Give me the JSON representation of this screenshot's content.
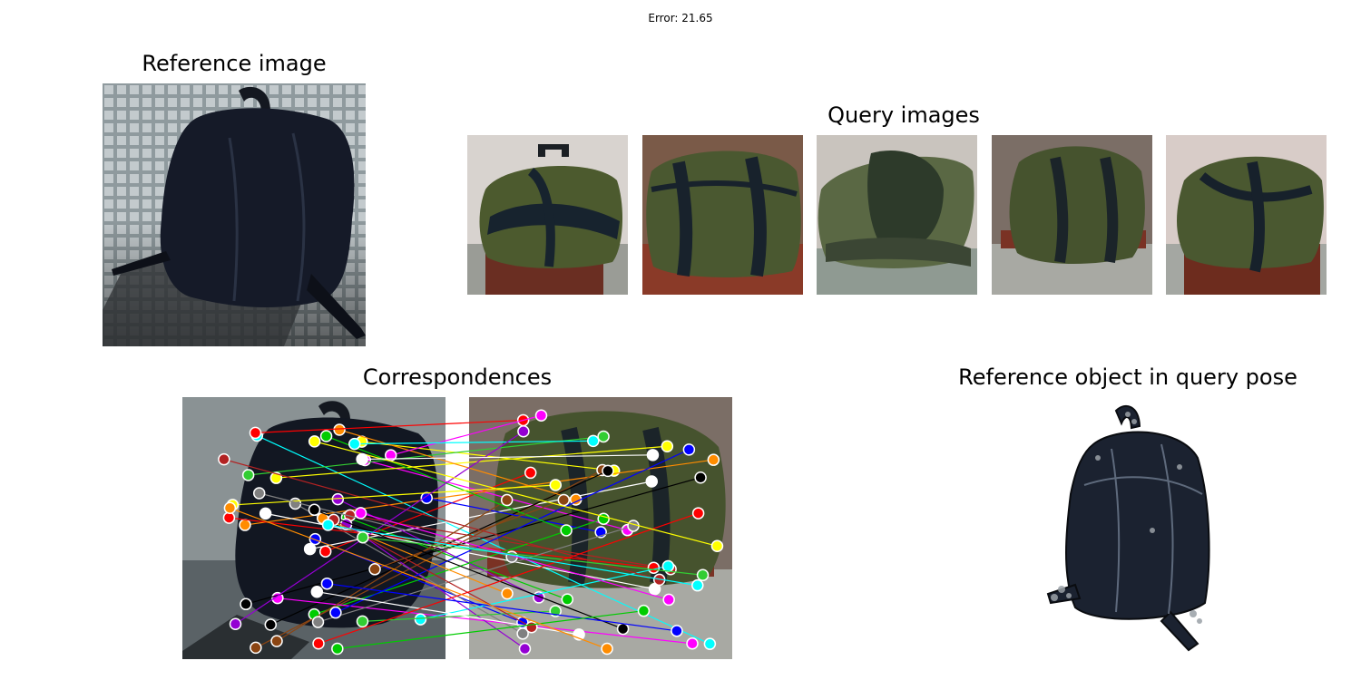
{
  "header": {
    "error_text": "Error: 21.65"
  },
  "reference_panel": {
    "title": "Reference image"
  },
  "query_panel": {
    "title": "Query images",
    "images": [
      {
        "label": "query-image-1",
        "selected": false
      },
      {
        "label": "query-image-2",
        "selected": false
      },
      {
        "label": "query-image-3",
        "selected": false
      },
      {
        "label": "query-image-4",
        "selected": true
      },
      {
        "label": "query-image-5",
        "selected": false
      }
    ],
    "selected_index": 3,
    "selection_color": "#008000"
  },
  "correspondences_panel": {
    "title": "Correspondences"
  },
  "pose_panel": {
    "title": "Reference object in query pose"
  },
  "colors": {
    "match_palette": [
      "#ff0000",
      "#0000ff",
      "#00cc00",
      "#ffff00",
      "#ff00ff",
      "#00ffff",
      "#ff8c00",
      "#ffffff",
      "#8b4513",
      "#9400d3",
      "#808080",
      "#000000",
      "#b22222",
      "#32cd32"
    ]
  }
}
